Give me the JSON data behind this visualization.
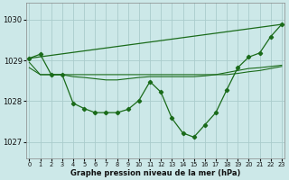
{
  "bg_color": "#cce8e8",
  "grid_color": "#aacccc",
  "line_color": "#1a6b1a",
  "xlabel": "Graphe pression niveau de la mer (hPa)",
  "ylim": [
    1026.6,
    1030.4
  ],
  "yticks": [
    1027,
    1028,
    1029,
    1030
  ],
  "xlim": [
    -0.3,
    23.3
  ],
  "xticks": [
    0,
    1,
    2,
    3,
    4,
    5,
    6,
    7,
    8,
    9,
    10,
    11,
    12,
    13,
    14,
    15,
    16,
    17,
    18,
    19,
    20,
    21,
    22,
    23
  ],
  "series_zigzag": {
    "x": [
      0,
      1,
      2,
      3,
      4,
      5,
      6,
      7,
      8,
      9,
      10,
      11,
      12,
      13,
      14,
      15,
      16,
      17,
      18,
      19,
      20,
      21,
      22,
      23
    ],
    "y": [
      1029.05,
      1029.15,
      1028.65,
      1028.65,
      1027.95,
      1027.82,
      1027.72,
      1027.72,
      1027.72,
      1027.8,
      1028.02,
      1028.48,
      1028.22,
      1027.58,
      1027.22,
      1027.12,
      1027.42,
      1027.72,
      1028.28,
      1028.82,
      1029.08,
      1029.18,
      1029.58,
      1029.88
    ]
  },
  "series_linear": {
    "x": [
      0,
      23
    ],
    "y": [
      1029.05,
      1029.88
    ]
  },
  "series_flat1": {
    "x": [
      0,
      1,
      2,
      3,
      4,
      5,
      6,
      7,
      8,
      9,
      10,
      11,
      12,
      13,
      14,
      15,
      16,
      17,
      18,
      19,
      20,
      21,
      22,
      23
    ],
    "y": [
      1028.82,
      1028.65,
      1028.65,
      1028.65,
      1028.6,
      1028.58,
      1028.55,
      1028.52,
      1028.52,
      1028.55,
      1028.58,
      1028.6,
      1028.6,
      1028.6,
      1028.6,
      1028.6,
      1028.62,
      1028.65,
      1028.7,
      1028.75,
      1028.8,
      1028.82,
      1028.85,
      1028.88
    ]
  },
  "series_flat2": {
    "x": [
      0,
      1,
      2,
      3,
      4,
      5,
      6,
      7,
      8,
      9,
      10,
      11,
      12,
      13,
      14,
      15,
      16,
      17,
      18,
      19,
      20,
      21,
      22,
      23
    ],
    "y": [
      1028.95,
      1028.65,
      1028.65,
      1028.65,
      1028.65,
      1028.65,
      1028.65,
      1028.65,
      1028.65,
      1028.65,
      1028.65,
      1028.65,
      1028.65,
      1028.65,
      1028.65,
      1028.65,
      1028.65,
      1028.65,
      1028.65,
      1028.68,
      1028.72,
      1028.75,
      1028.8,
      1028.85
    ]
  }
}
